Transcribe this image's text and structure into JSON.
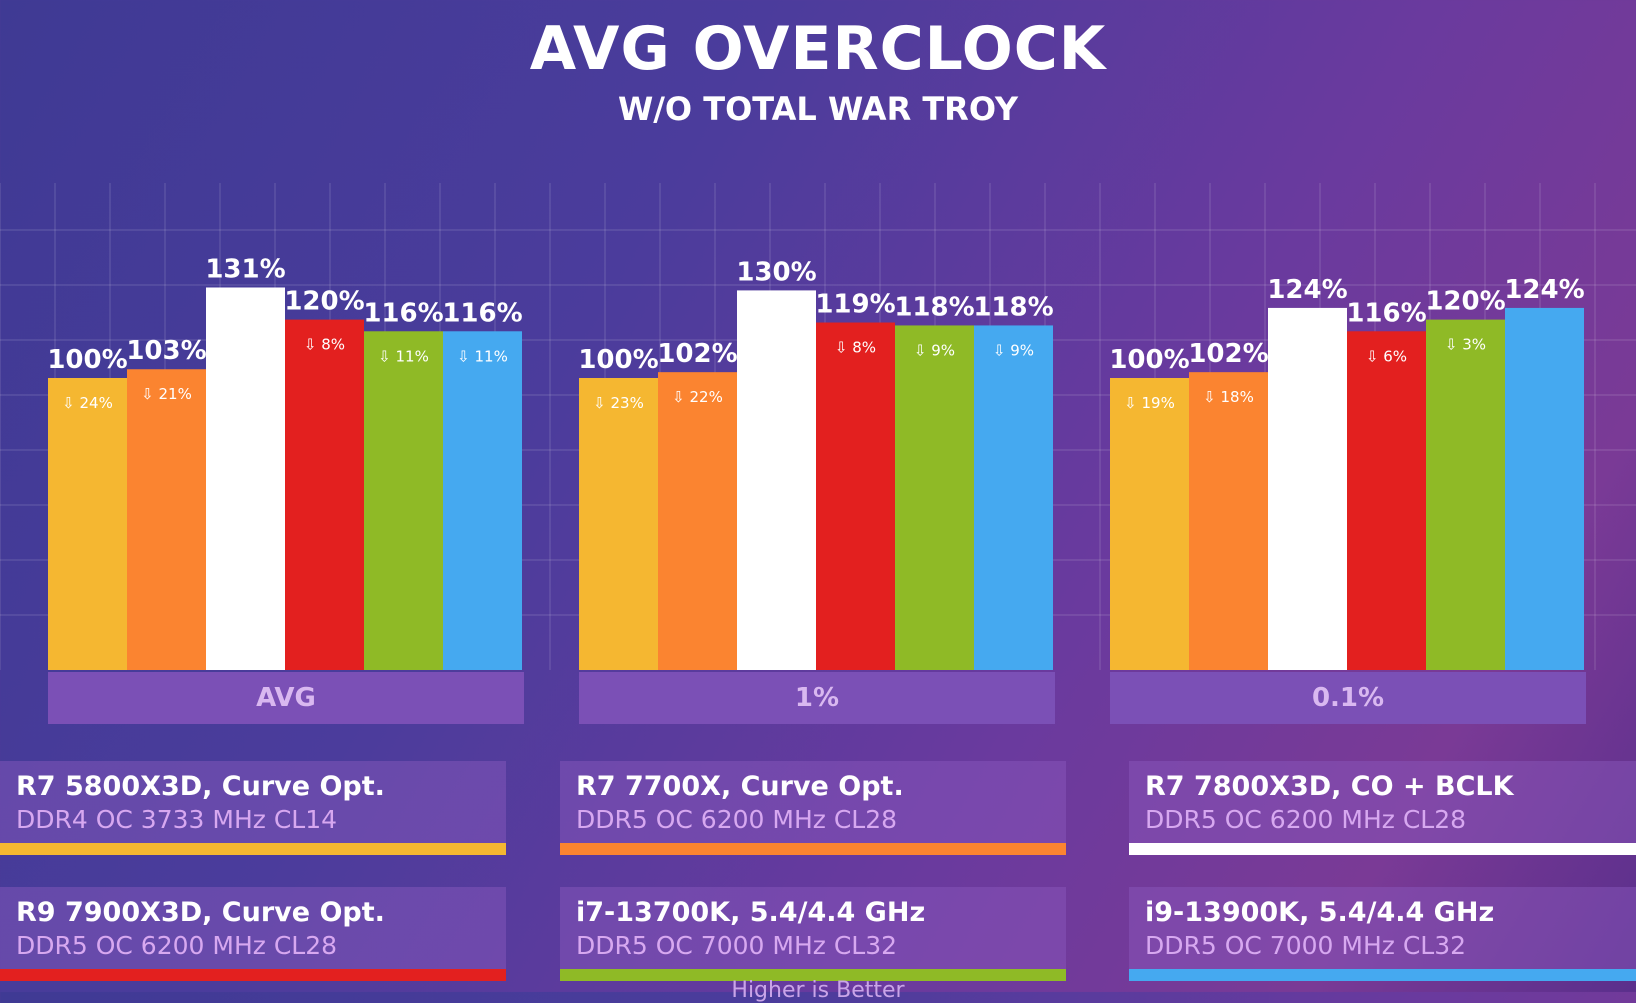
{
  "chart_data": {
    "type": "bar",
    "title": "AVG OVERCLOCK",
    "subtitle": "W/O TOTAL WAR TROY",
    "categories": [
      "AVG",
      "1%",
      "0.1%"
    ],
    "ylim": [
      0,
      160
    ],
    "series": [
      {
        "name": "R7 5800X3D, Curve Opt.",
        "memory": "DDR4 OC 3733 MHz CL14",
        "color": "#f5b731",
        "values": [
          100,
          100,
          100
        ],
        "deficits": [
          "24%",
          "23%",
          "19%"
        ]
      },
      {
        "name": "R7 7700X, Curve Opt.",
        "memory": "DDR5 OC 6200 MHz CL28",
        "color": "#fb8430",
        "values": [
          103,
          102,
          102
        ],
        "deficits": [
          "21%",
          "22%",
          "18%"
        ]
      },
      {
        "name": "R7 7800X3D, CO + BCLK",
        "memory": "DDR5 OC 6200 MHz CL28",
        "color": "#ffffff",
        "values": [
          131,
          130,
          124
        ],
        "deficits": [
          "",
          "",
          ""
        ]
      },
      {
        "name": "R9 7900X3D, Curve Opt.",
        "memory": "DDR5 OC 6200 MHz CL28",
        "color": "#e3201f",
        "values": [
          120,
          119,
          116
        ],
        "deficits": [
          "8%",
          "8%",
          "6%"
        ]
      },
      {
        "name": "i7-13700K, 5.4/4.4 GHz",
        "memory": "DDR5 OC 7000 MHz CL32",
        "color": "#8fba26",
        "values": [
          116,
          118,
          120
        ],
        "deficits": [
          "11%",
          "9%",
          "3%"
        ]
      },
      {
        "name": "i9-13900K, 5.4/4.4 GHz",
        "memory": "DDR5 OC 7000 MHz CL32",
        "color": "#45a9f0",
        "values": [
          116,
          118,
          124
        ],
        "deficits": [
          "11%",
          "9%",
          ""
        ]
      }
    ],
    "footer": "Higher is Better"
  }
}
